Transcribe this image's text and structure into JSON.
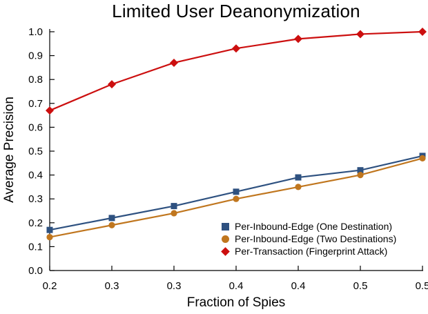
{
  "title": "Limited User Deanonymization",
  "colors": {
    "background": "#ffffff",
    "text": "#000000",
    "axis": "#000000",
    "series_blue": "#2E5180",
    "series_orange": "#C0761E",
    "series_red": "#CC0F0F"
  },
  "chart_data": {
    "type": "line",
    "title": "Limited User Deanonymization",
    "xlabel": "Fraction of Spies",
    "ylabel": "Average Precision",
    "x": [
      0.2,
      0.25,
      0.3,
      0.35,
      0.4,
      0.45,
      0.5
    ],
    "x_tick_labels": [
      "0.2",
      "0.3",
      "0.3",
      "0.4",
      "0.4",
      "0.5",
      "0.5"
    ],
    "y_ticks": [
      "0.0",
      "0.1",
      "0.2",
      "0.3",
      "0.4",
      "0.5",
      "0.6",
      "0.7",
      "0.8",
      "0.9",
      "1.0"
    ],
    "xlim": [
      0.2,
      0.5
    ],
    "ylim": [
      0.0,
      1.0
    ],
    "grid": false,
    "legend_position": "lower right inside",
    "series": [
      {
        "name": "Per-Inbound-Edge (One Destination)",
        "marker": "square",
        "color": "#2E5180",
        "values": [
          0.17,
          0.22,
          0.27,
          0.33,
          0.39,
          0.42,
          0.48
        ]
      },
      {
        "name": "Per-Inbound-Edge (Two Destinations)",
        "marker": "circle",
        "color": "#C0761E",
        "values": [
          0.14,
          0.19,
          0.24,
          0.3,
          0.35,
          0.4,
          0.47
        ]
      },
      {
        "name": "Per-Transaction (Fingerprint Attack)",
        "marker": "diamond",
        "color": "#CC0F0F",
        "values": [
          0.67,
          0.78,
          0.87,
          0.93,
          0.97,
          0.99,
          1.0
        ]
      }
    ]
  }
}
